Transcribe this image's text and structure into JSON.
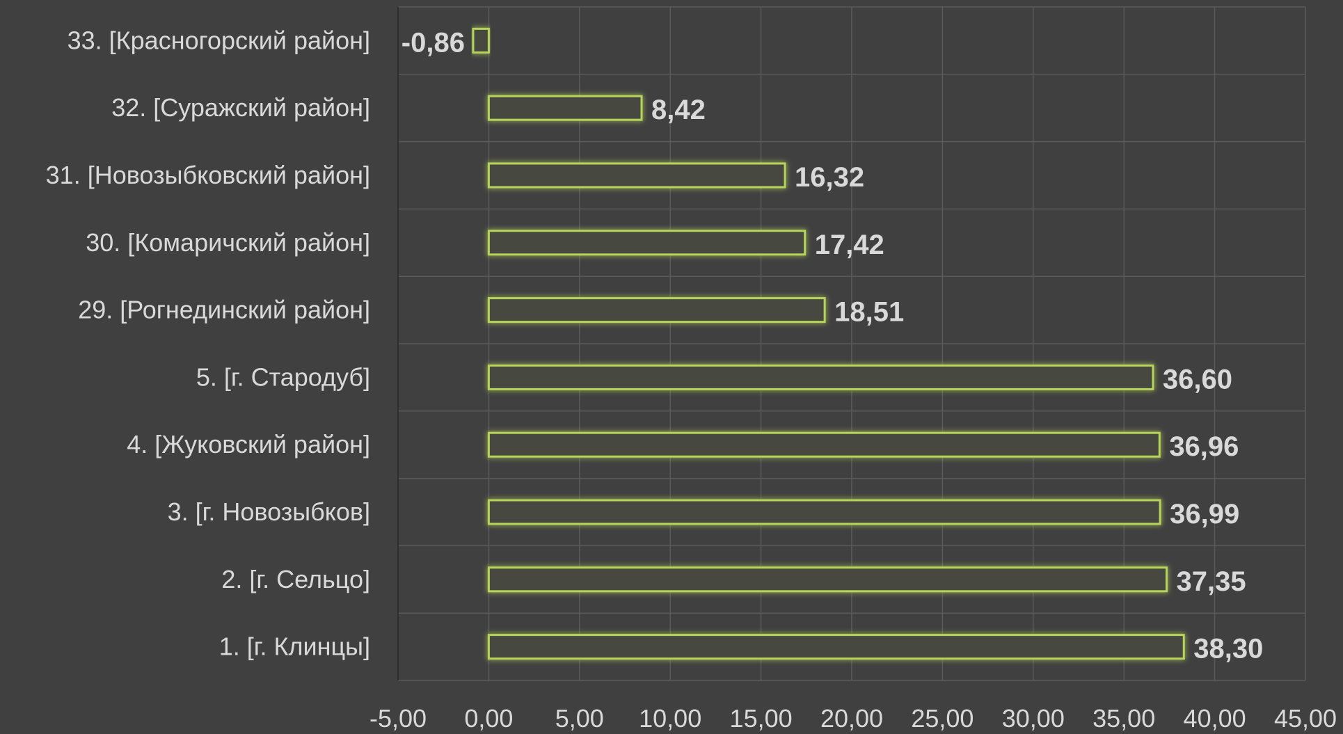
{
  "chart_data": {
    "type": "bar",
    "orientation": "horizontal",
    "categories": [
      "33. [Красногорский район]",
      "32. [Суражский район]",
      "31. [Новозыбковский район]",
      "30. [Комаричский район]",
      "29. [Рогнединский район]",
      "5. [г. Стародуб]",
      "4. [Жуковский район]",
      "3. [г. Новозыбков]",
      "2. [г. Сельцо]",
      "1. [г. Клинцы]"
    ],
    "values": [
      -0.86,
      8.42,
      16.32,
      17.42,
      18.51,
      36.6,
      36.96,
      36.99,
      37.35,
      38.3
    ],
    "data_labels": [
      "-0,86",
      "8,42",
      "16,32",
      "17,42",
      "18,51",
      "36,60",
      "36,96",
      "36,99",
      "37,35",
      "38,30"
    ],
    "x_ticks": [
      -5,
      0,
      5,
      10,
      15,
      20,
      25,
      30,
      35,
      40,
      45
    ],
    "x_tick_labels": [
      "-5,00",
      "0,00",
      "5,00",
      "10,00",
      "15,00",
      "20,00",
      "25,00",
      "30,00",
      "35,00",
      "40,00",
      "45,00"
    ],
    "xlim": [
      -5,
      45
    ],
    "grid": true,
    "title": "",
    "xlabel": "",
    "ylabel": ""
  },
  "colors": {
    "background": "#404040",
    "grid": "#5a5a5a",
    "bar_stroke": "#b6d35b",
    "bar_fill": "#464840",
    "glow": "#a8d040",
    "text": "#d9d9d9"
  }
}
